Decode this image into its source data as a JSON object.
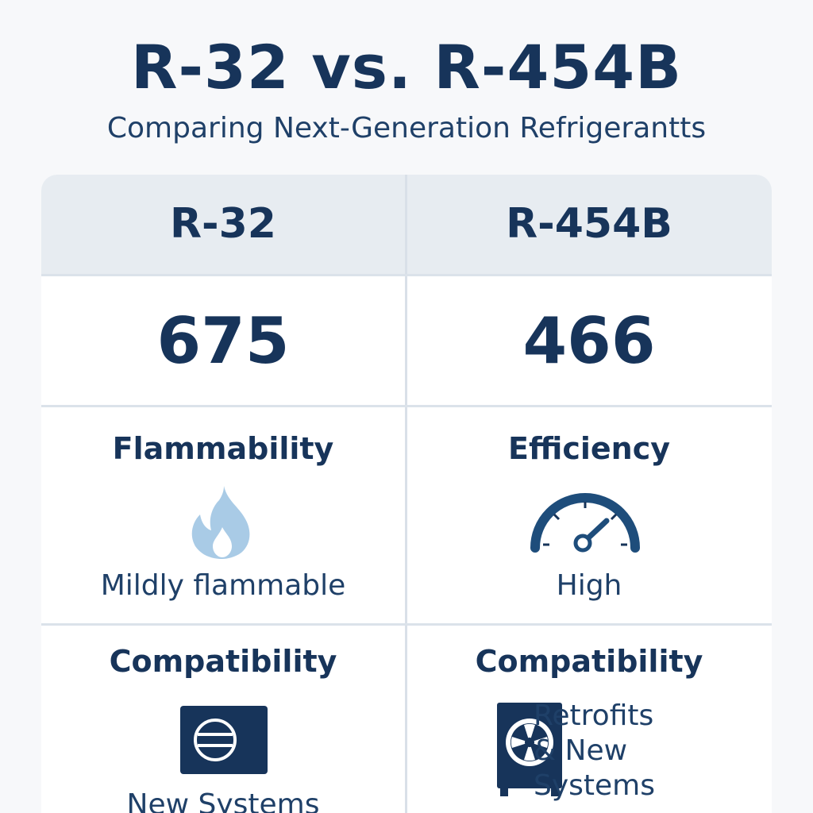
{
  "header": {
    "title": "R-32 vs. R-454B",
    "subtitle": "Comparing Next-Generation Refrigerantts"
  },
  "columns": [
    {
      "name": "R-32",
      "gwp": "675",
      "property_title": "Flammability",
      "property_icon": "flame-icon",
      "property_value": "Mildly flammable",
      "compat_title": "Compatibility",
      "compat_icon": "ac-unit-icon",
      "compat_value": "New Systems"
    },
    {
      "name": "R-454B",
      "gwp": "466",
      "property_title": "Efficiency",
      "property_icon": "gauge-icon",
      "property_value": "High",
      "compat_title": "Compatibility",
      "compat_icon": "fan-unit-icon",
      "compat_value_lines": [
        "Retrofits",
        "& New",
        "Systems"
      ]
    }
  ],
  "colors": {
    "navy": "#17345a",
    "flame": "#a9cbe6",
    "header_bg": "#e7ecf1",
    "background": "#f7f8fa"
  }
}
